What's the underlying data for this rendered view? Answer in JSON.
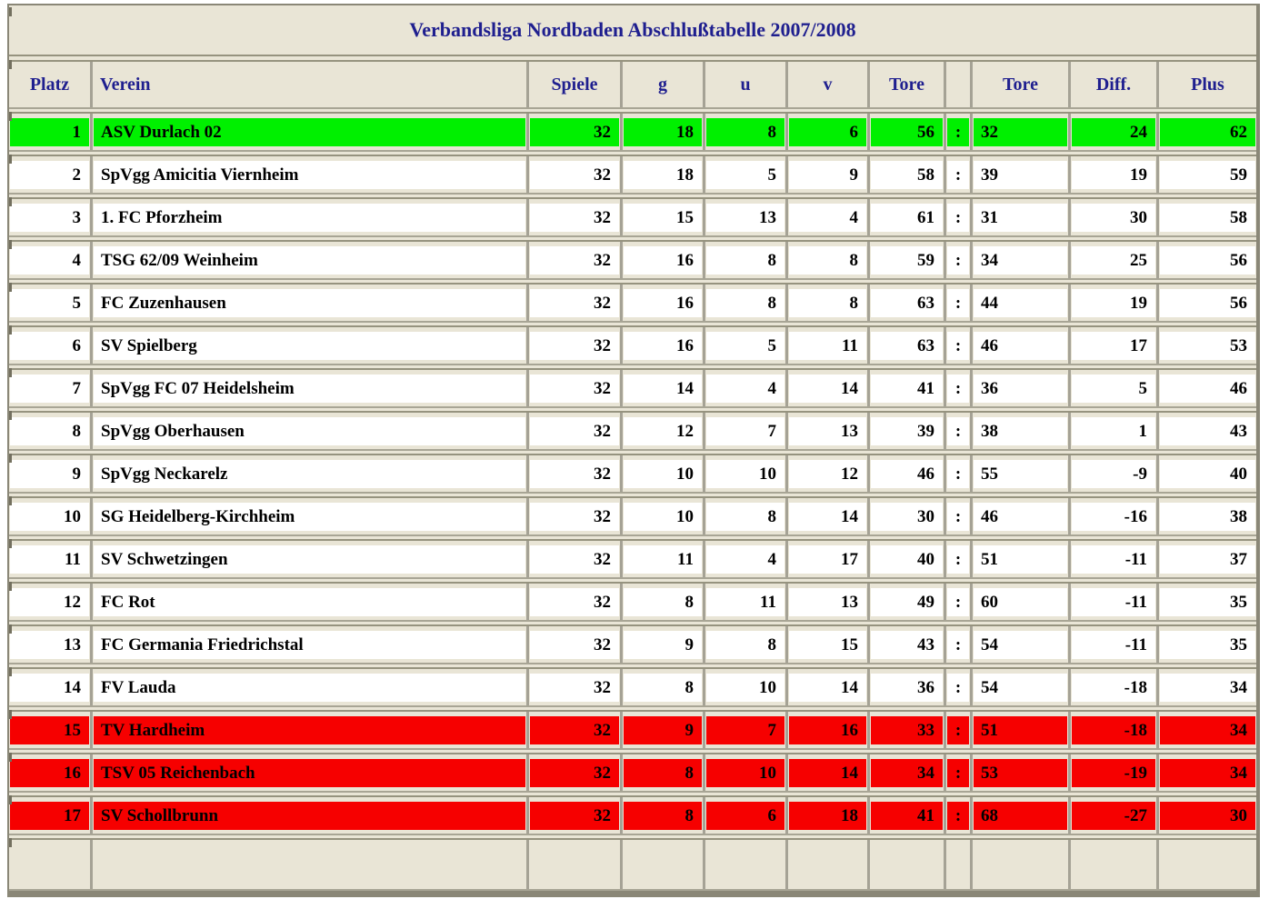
{
  "title": "Verbandsliga Nordbaden Abschlußtabelle 2007/2008",
  "colors": {
    "promotion_green": "#00f000",
    "relegation_red": "#f60000",
    "row_white": "#ffffff",
    "background_beige": "#e9e5d6",
    "header_navy": "#1f1f8f"
  },
  "table": {
    "columns": [
      {
        "key": "platz",
        "label": "Platz",
        "align": "right"
      },
      {
        "key": "verein",
        "label": "Verein",
        "align": "left"
      },
      {
        "key": "spiele",
        "label": "Spiele",
        "align": "right"
      },
      {
        "key": "g",
        "label": "g",
        "align": "right"
      },
      {
        "key": "u",
        "label": "u",
        "align": "right"
      },
      {
        "key": "v",
        "label": "v",
        "align": "right"
      },
      {
        "key": "tore-for",
        "label": "Tore",
        "align": "right"
      },
      {
        "key": "colon",
        "label": "",
        "align": "center"
      },
      {
        "key": "tore-against",
        "label": "Tore",
        "align": "left"
      },
      {
        "key": "diff",
        "label": "Diff.",
        "align": "right"
      },
      {
        "key": "plus",
        "label": "Plus",
        "align": "right"
      }
    ],
    "rows": [
      {
        "highlight": "green",
        "cells": [
          "1",
          "ASV Durlach 02",
          "32",
          "18",
          "8",
          "6",
          "56",
          ":",
          "32",
          "24",
          "62"
        ]
      },
      {
        "highlight": "none",
        "cells": [
          "2",
          "SpVgg Amicitia Viernheim",
          "32",
          "18",
          "5",
          "9",
          "58",
          ":",
          "39",
          "19",
          "59"
        ]
      },
      {
        "highlight": "none",
        "cells": [
          "3",
          "1. FC Pforzheim",
          "32",
          "15",
          "13",
          "4",
          "61",
          ":",
          "31",
          "30",
          "58"
        ]
      },
      {
        "highlight": "none",
        "cells": [
          "4",
          "TSG 62/09 Weinheim",
          "32",
          "16",
          "8",
          "8",
          "59",
          ":",
          "34",
          "25",
          "56"
        ]
      },
      {
        "highlight": "none",
        "cells": [
          "5",
          "FC Zuzenhausen",
          "32",
          "16",
          "8",
          "8",
          "63",
          ":",
          "44",
          "19",
          "56"
        ]
      },
      {
        "highlight": "none",
        "cells": [
          "6",
          "SV Spielberg",
          "32",
          "16",
          "5",
          "11",
          "63",
          ":",
          "46",
          "17",
          "53"
        ]
      },
      {
        "highlight": "none",
        "cells": [
          "7",
          "SpVgg FC 07 Heidelsheim",
          "32",
          "14",
          "4",
          "14",
          "41",
          ":",
          "36",
          "5",
          "46"
        ]
      },
      {
        "highlight": "none",
        "cells": [
          "8",
          "SpVgg Oberhausen",
          "32",
          "12",
          "7",
          "13",
          "39",
          ":",
          "38",
          "1",
          "43"
        ]
      },
      {
        "highlight": "none",
        "cells": [
          "9",
          "SpVgg Neckarelz",
          "32",
          "10",
          "10",
          "12",
          "46",
          ":",
          "55",
          "-9",
          "40"
        ]
      },
      {
        "highlight": "none",
        "cells": [
          "10",
          "SG Heidelberg-Kirchheim",
          "32",
          "10",
          "8",
          "14",
          "30",
          ":",
          "46",
          "-16",
          "38"
        ]
      },
      {
        "highlight": "none",
        "cells": [
          "11",
          "SV Schwetzingen",
          "32",
          "11",
          "4",
          "17",
          "40",
          ":",
          "51",
          "-11",
          "37"
        ]
      },
      {
        "highlight": "none",
        "cells": [
          "12",
          "FC Rot",
          "32",
          "8",
          "11",
          "13",
          "49",
          ":",
          "60",
          "-11",
          "35"
        ]
      },
      {
        "highlight": "none",
        "cells": [
          "13",
          "FC Germania Friedrichstal",
          "32",
          "9",
          "8",
          "15",
          "43",
          ":",
          "54",
          "-11",
          "35"
        ]
      },
      {
        "highlight": "none",
        "cells": [
          "14",
          "FV Lauda",
          "32",
          "8",
          "10",
          "14",
          "36",
          ":",
          "54",
          "-18",
          "34"
        ]
      },
      {
        "highlight": "red",
        "cells": [
          "15",
          "TV Hardheim",
          "32",
          "9",
          "7",
          "16",
          "33",
          ":",
          "51",
          "-18",
          "34"
        ]
      },
      {
        "highlight": "red",
        "cells": [
          "16",
          "TSV 05 Reichenbach",
          "32",
          "8",
          "10",
          "14",
          "34",
          ":",
          "53",
          "-19",
          "34"
        ]
      },
      {
        "highlight": "red",
        "cells": [
          "17",
          "SV Schollbrunn",
          "32",
          "8",
          "6",
          "18",
          "41",
          ":",
          "68",
          "-27",
          "30"
        ]
      }
    ]
  }
}
